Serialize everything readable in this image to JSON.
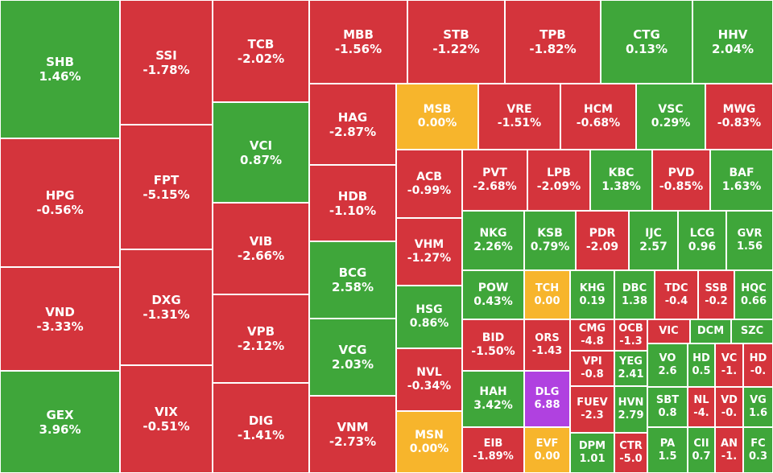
{
  "chart_data": {
    "type": "treemap",
    "colors": {
      "up": "#3fa63a",
      "down": "#d4343c",
      "unchanged": "#f7b52c",
      "ceiling": "#b041e0"
    },
    "items": [
      {
        "symbol": "SHB",
        "change": "1.46%",
        "status": "up"
      },
      {
        "symbol": "HPG",
        "change": "-0.56%",
        "status": "down"
      },
      {
        "symbol": "VND",
        "change": "-3.33%",
        "status": "down"
      },
      {
        "symbol": "GEX",
        "change": "3.96%",
        "status": "up"
      },
      {
        "symbol": "SSI",
        "change": "-1.78%",
        "status": "down"
      },
      {
        "symbol": "FPT",
        "change": "-5.15%",
        "status": "down"
      },
      {
        "symbol": "DXG",
        "change": "-1.31%",
        "status": "down"
      },
      {
        "symbol": "VIX",
        "change": "-0.51%",
        "status": "down"
      },
      {
        "symbol": "TCB",
        "change": "-2.02%",
        "status": "down"
      },
      {
        "symbol": "VCI",
        "change": "0.87%",
        "status": "up"
      },
      {
        "symbol": "VIB",
        "change": "-2.66%",
        "status": "down"
      },
      {
        "symbol": "VPB",
        "change": "-2.12%",
        "status": "down"
      },
      {
        "symbol": "DIG",
        "change": "-1.41%",
        "status": "down"
      },
      {
        "symbol": "MBB",
        "change": "-1.56%",
        "status": "down"
      },
      {
        "symbol": "HAG",
        "change": "-2.87%",
        "status": "down"
      },
      {
        "symbol": "HDB",
        "change": "-1.10%",
        "status": "down"
      },
      {
        "symbol": "BCG",
        "change": "2.58%",
        "status": "up"
      },
      {
        "symbol": "VCG",
        "change": "2.03%",
        "status": "up"
      },
      {
        "symbol": "VNM",
        "change": "-2.73%",
        "status": "down"
      },
      {
        "symbol": "STB",
        "change": "-1.22%",
        "status": "down"
      },
      {
        "symbol": "TPB",
        "change": "-1.82%",
        "status": "down"
      },
      {
        "symbol": "CTG",
        "change": "0.13%",
        "status": "up"
      },
      {
        "symbol": "HHV",
        "change": "2.04%",
        "status": "up"
      },
      {
        "symbol": "MSB",
        "change": "0.00%",
        "status": "unchanged"
      },
      {
        "symbol": "VRE",
        "change": "-1.51%",
        "status": "down"
      },
      {
        "symbol": "HCM",
        "change": "-0.68%",
        "status": "down"
      },
      {
        "symbol": "VSC",
        "change": "0.29%",
        "status": "up"
      },
      {
        "symbol": "MWG",
        "change": "-0.83%",
        "status": "down"
      },
      {
        "symbol": "ACB",
        "change": "-0.99%",
        "status": "down"
      },
      {
        "symbol": "VHM",
        "change": "-1.27%",
        "status": "down"
      },
      {
        "symbol": "HSG",
        "change": "0.86%",
        "status": "up"
      },
      {
        "symbol": "NVL",
        "change": "-0.34%",
        "status": "down"
      },
      {
        "symbol": "MSN",
        "change": "0.00%",
        "status": "unchanged"
      },
      {
        "symbol": "PVT",
        "change": "-2.68%",
        "status": "down"
      },
      {
        "symbol": "LPB",
        "change": "-2.09%",
        "status": "down"
      },
      {
        "symbol": "KBC",
        "change": "1.38%",
        "status": "up"
      },
      {
        "symbol": "PVD",
        "change": "-0.85%",
        "status": "down"
      },
      {
        "symbol": "BAF",
        "change": "1.63%",
        "status": "up"
      },
      {
        "symbol": "NKG",
        "change": "2.26%",
        "status": "up"
      },
      {
        "symbol": "KSB",
        "change": "0.79%",
        "status": "up"
      },
      {
        "symbol": "PDR",
        "change": "-2.09",
        "status": "down"
      },
      {
        "symbol": "IJC",
        "change": "2.57",
        "status": "up"
      },
      {
        "symbol": "LCG",
        "change": "0.96",
        "status": "up"
      },
      {
        "symbol": "GVR",
        "change": "1.56",
        "status": "up"
      },
      {
        "symbol": "POW",
        "change": "0.43%",
        "status": "up"
      },
      {
        "symbol": "TCH",
        "change": "0.00",
        "status": "unchanged"
      },
      {
        "symbol": "KHG",
        "change": "0.19",
        "status": "up"
      },
      {
        "symbol": "DBC",
        "change": "1.38",
        "status": "up"
      },
      {
        "symbol": "TDC",
        "change": "-0.4",
        "status": "down"
      },
      {
        "symbol": "SSB",
        "change": "-0.2",
        "status": "down"
      },
      {
        "symbol": "HQC",
        "change": "0.66",
        "status": "up"
      },
      {
        "symbol": "BID",
        "change": "-1.50%",
        "status": "down"
      },
      {
        "symbol": "ORS",
        "change": "-1.43",
        "status": "down"
      },
      {
        "symbol": "CMG",
        "change": "-4.8",
        "status": "down"
      },
      {
        "symbol": "OCB",
        "change": "-1.3",
        "status": "down"
      },
      {
        "symbol": "VIC",
        "change": "",
        "status": "down"
      },
      {
        "symbol": "DCM",
        "change": "",
        "status": "up"
      },
      {
        "symbol": "SZC",
        "change": "",
        "status": "up"
      },
      {
        "symbol": "VPI",
        "change": "-0.8",
        "status": "down"
      },
      {
        "symbol": "YEG",
        "change": "2.41",
        "status": "up"
      },
      {
        "symbol": "VO",
        "change": "2.6",
        "status": "up"
      },
      {
        "symbol": "HD",
        "change": "0.5",
        "status": "up"
      },
      {
        "symbol": "VC",
        "change": "-1.",
        "status": "down"
      },
      {
        "symbol": "HD",
        "change": "-0.",
        "status": "down"
      },
      {
        "symbol": "HAH",
        "change": "3.42%",
        "status": "up"
      },
      {
        "symbol": "DLG",
        "change": "6.88",
        "status": "ceiling"
      },
      {
        "symbol": "FUEV",
        "change": "-2.3",
        "status": "down"
      },
      {
        "symbol": "HVN",
        "change": "2.79",
        "status": "up"
      },
      {
        "symbol": "SBT",
        "change": "0.8",
        "status": "up"
      },
      {
        "symbol": "NL",
        "change": "-4.",
        "status": "down"
      },
      {
        "symbol": "VD",
        "change": "-0.",
        "status": "down"
      },
      {
        "symbol": "VG",
        "change": "1.6",
        "status": "up"
      },
      {
        "symbol": "EIB",
        "change": "-1.89%",
        "status": "down"
      },
      {
        "symbol": "EVF",
        "change": "0.00",
        "status": "unchanged"
      },
      {
        "symbol": "DPM",
        "change": "1.01",
        "status": "up"
      },
      {
        "symbol": "CTR",
        "change": "-5.0",
        "status": "down"
      },
      {
        "symbol": "PA",
        "change": "1.5",
        "status": "up"
      },
      {
        "symbol": "CII",
        "change": "0.7",
        "status": "up"
      },
      {
        "symbol": "AN",
        "change": "-1.",
        "status": "down"
      },
      {
        "symbol": "FC",
        "change": "0.3",
        "status": "up"
      }
    ]
  }
}
